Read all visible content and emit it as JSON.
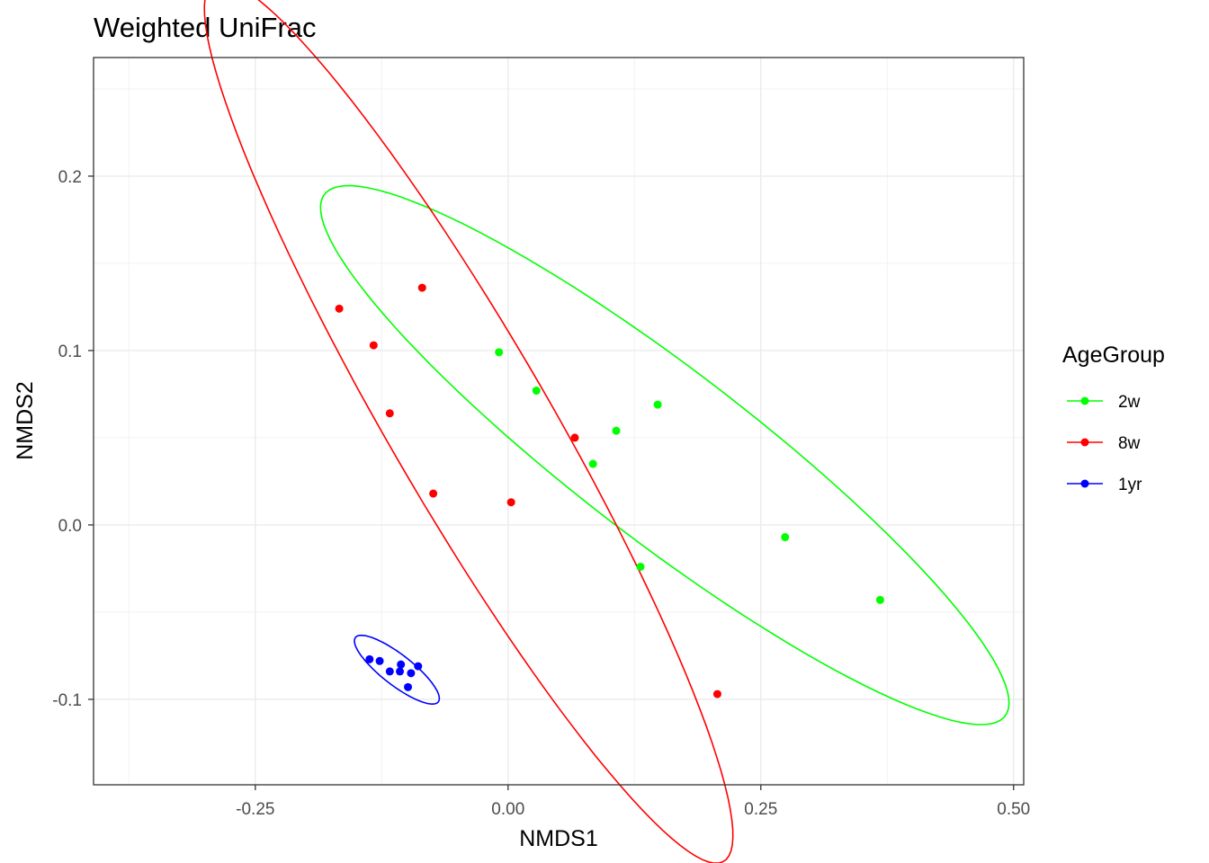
{
  "chart_data": {
    "type": "scatter",
    "title": "Weighted UniFrac",
    "xlabel": "NMDS1",
    "ylabel": "NMDS2",
    "xlim": [
      -0.41,
      0.51
    ],
    "ylim": [
      -0.149,
      0.268
    ],
    "x_ticks": [
      {
        "value": -0.25,
        "label": "-0.25"
      },
      {
        "value": 0.0,
        "label": "0.00"
      },
      {
        "value": 0.25,
        "label": "0.25"
      },
      {
        "value": 0.5,
        "label": "0.50"
      }
    ],
    "y_ticks": [
      {
        "value": -0.1,
        "label": "-0.1"
      },
      {
        "value": 0.0,
        "label": "0.0"
      },
      {
        "value": 0.1,
        "label": "0.1"
      },
      {
        "value": 0.2,
        "label": "0.2"
      }
    ],
    "grid": true,
    "legend": {
      "title": "AgeGroup",
      "position": "right"
    },
    "series": [
      {
        "name": "2w",
        "color": "#00ff00",
        "points": [
          [
            -0.009,
            0.099
          ],
          [
            0.028,
            0.077
          ],
          [
            0.148,
            0.069
          ],
          [
            0.107,
            0.054
          ],
          [
            0.084,
            0.035
          ],
          [
            0.131,
            -0.024
          ],
          [
            0.274,
            -0.007
          ],
          [
            0.368,
            -0.043
          ]
        ],
        "ellipse": {
          "cx": 0.155,
          "cy": 0.04,
          "a": 0.3697,
          "b": 0.0562,
          "angle_deg": -23.2
        }
      },
      {
        "name": "8w",
        "color": "#ff0000",
        "points": [
          [
            -0.167,
            0.124
          ],
          [
            -0.085,
            0.136
          ],
          [
            -0.133,
            0.103
          ],
          [
            -0.117,
            0.064
          ],
          [
            -0.074,
            0.018
          ],
          [
            0.003,
            0.013
          ],
          [
            0.066,
            0.05
          ],
          [
            0.207,
            -0.097
          ]
        ],
        "ellipse": {
          "cx": -0.039,
          "cy": 0.059,
          "a": 0.358,
          "b": 0.0646,
          "angle_deg": -44.0
        }
      },
      {
        "name": "1yr",
        "color": "#0000ff",
        "points": [
          [
            -0.137,
            -0.077
          ],
          [
            -0.127,
            -0.078
          ],
          [
            -0.117,
            -0.084
          ],
          [
            -0.106,
            -0.08
          ],
          [
            -0.107,
            -0.084
          ],
          [
            -0.096,
            -0.085
          ],
          [
            -0.089,
            -0.081
          ],
          [
            -0.099,
            -0.093
          ]
        ],
        "ellipse": {
          "cx": -0.11,
          "cy": -0.083,
          "a": 0.0453,
          "b": 0.01,
          "angle_deg": -22.6
        }
      }
    ]
  }
}
